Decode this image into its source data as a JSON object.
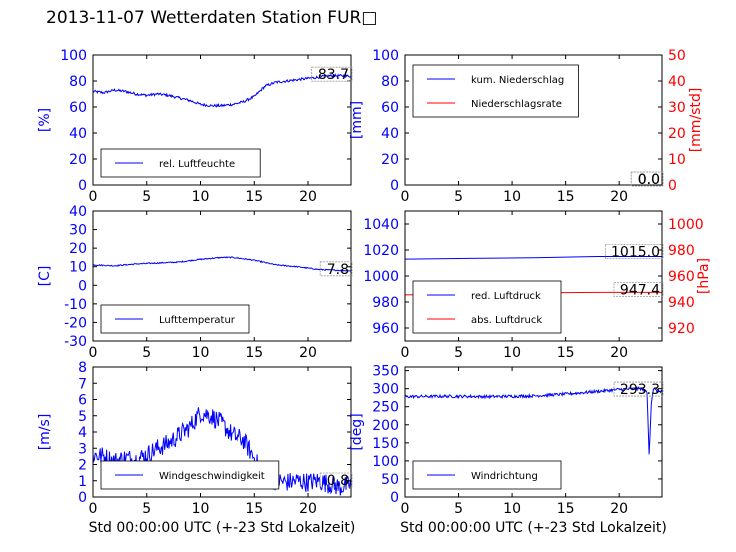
{
  "figure_title": "2013-11-07 Wetterdaten Station FUR□",
  "colors": {
    "left_axis": "#0000ff",
    "right_axis": "#ff0000",
    "text": "#000000"
  },
  "chart_data": [
    {
      "type": "line",
      "ylabel": "[%]",
      "ylim": [
        0,
        100
      ],
      "yticks": [
        0,
        20,
        40,
        60,
        80,
        100
      ],
      "xlim": [
        0,
        24
      ],
      "xticks": [
        0,
        5,
        10,
        15,
        20
      ],
      "last_value_label": "83.7",
      "legend_position": "bottom-left",
      "series": [
        {
          "name": "rel. Luftfeuchte",
          "color": "#0000ff",
          "noise": 1.0,
          "x": [
            0,
            1,
            2,
            3,
            4,
            5,
            6,
            7,
            8,
            9,
            10,
            11,
            12,
            13,
            14,
            15,
            16,
            17,
            18,
            19,
            20,
            21,
            22,
            23,
            24
          ],
          "values": [
            72,
            71,
            73,
            72,
            70,
            69,
            70,
            69,
            67,
            65,
            62,
            61,
            61,
            62,
            64,
            68,
            76,
            79,
            80,
            81,
            82,
            83,
            84,
            84,
            83.7
          ]
        }
      ]
    },
    {
      "type": "line",
      "ylabel": "[mm]",
      "ylim": [
        0,
        100
      ],
      "yticks": [
        0,
        20,
        40,
        60,
        80,
        100
      ],
      "ylabel2": "[mm/std]",
      "ylim2": [
        0,
        50
      ],
      "yticks2": [
        0,
        10,
        20,
        30,
        40,
        50
      ],
      "xlim": [
        0,
        24
      ],
      "xticks": [
        0,
        5,
        10,
        15,
        20
      ],
      "last_value_label": "0.0",
      "last_value_label2": "0.0",
      "legend_position": "top-left",
      "series": [
        {
          "name": "kum. Niederschlag",
          "color": "#0000ff",
          "axis": "left",
          "x": [
            0,
            24
          ],
          "values": [
            0,
            0
          ]
        },
        {
          "name": "Niederschlagsrate",
          "color": "#ff0000",
          "axis": "right",
          "x": [
            0,
            24
          ],
          "values": [
            0,
            0
          ]
        }
      ]
    },
    {
      "type": "line",
      "ylabel": "[C]",
      "ylim": [
        -30,
        40
      ],
      "yticks": [
        -30,
        -20,
        -10,
        0,
        10,
        20,
        30,
        40
      ],
      "xlim": [
        0,
        24
      ],
      "xticks": [
        0,
        5,
        10,
        15,
        20
      ],
      "last_value_label": "7.8",
      "legend_position": "bottom-left",
      "series": [
        {
          "name": "Lufttemperatur",
          "color": "#0000ff",
          "noise": 0.3,
          "x": [
            0,
            2,
            4,
            6,
            8,
            10,
            12,
            13,
            15,
            17,
            19,
            21,
            23,
            24
          ],
          "values": [
            11,
            10.5,
            11.5,
            12,
            12.5,
            14,
            15,
            15,
            13.5,
            11,
            10,
            8.5,
            8,
            7.8
          ]
        }
      ]
    },
    {
      "type": "line",
      "ylabel": "",
      "ylim": [
        950,
        1050
      ],
      "yticks": [
        960,
        980,
        1000,
        1020,
        1040
      ],
      "ylabel2": "[hPa]",
      "ylim2": [
        910,
        1010
      ],
      "yticks2": [
        920,
        940,
        960,
        980,
        1000
      ],
      "xlim": [
        0,
        24
      ],
      "xticks": [
        0,
        5,
        10,
        15,
        20
      ],
      "last_value_label": "1015.0",
      "last_value_label2": "947.4",
      "legend_position": "bottom-left",
      "series": [
        {
          "name": "red. Luftdruck",
          "color": "#0000ff",
          "axis": "left",
          "x": [
            0,
            6,
            12,
            18,
            24
          ],
          "values": [
            1013,
            1013.5,
            1014,
            1015,
            1015
          ]
        },
        {
          "name": "abs. Luftdruck",
          "color": "#ff0000",
          "axis": "right",
          "x": [
            0,
            6,
            12,
            18,
            24
          ],
          "values": [
            945.5,
            946,
            947,
            947.4,
            947.4
          ]
        }
      ]
    },
    {
      "type": "line",
      "ylabel": "[m/s]",
      "ylim": [
        0,
        8
      ],
      "yticks": [
        0,
        1,
        2,
        3,
        4,
        5,
        6,
        7,
        8
      ],
      "xlabel": "Std 00:00:00 UTC (+-23 Std Lokalzeit)",
      "xlim": [
        0,
        24
      ],
      "xticks": [
        0,
        5,
        10,
        15,
        20
      ],
      "last_value_label": "0.8",
      "legend_position": "bottom-left",
      "series": [
        {
          "name": "Windgeschwindigkeit",
          "color": "#0000ff",
          "noise": 0.6,
          "x": [
            0,
            1,
            2,
            3,
            4,
            5,
            6,
            7,
            8,
            9,
            10,
            11,
            12,
            13,
            14,
            15,
            16,
            17,
            18,
            19,
            20,
            21,
            22,
            23,
            24
          ],
          "values": [
            2.6,
            2.5,
            2.2,
            2.4,
            2.3,
            2.6,
            3.0,
            3.3,
            3.8,
            4.3,
            5.2,
            5.0,
            4.5,
            3.8,
            3.5,
            2.4,
            1.1,
            1.0,
            0.9,
            1.0,
            0.9,
            1.0,
            0.8,
            0.6,
            0.8
          ]
        }
      ]
    },
    {
      "type": "line",
      "ylabel": "[deg]",
      "ylim": [
        0,
        360
      ],
      "yticks": [
        0,
        50,
        100,
        150,
        200,
        250,
        300,
        350
      ],
      "xlabel": "Std 00:00:00 UTC (+-23 Std Lokalzeit)",
      "xlim": [
        0,
        24
      ],
      "xticks": [
        0,
        5,
        10,
        15,
        20
      ],
      "last_value_label": "293.3",
      "legend_position": "bottom-left",
      "series": [
        {
          "name": "Windrichtung",
          "color": "#0000ff",
          "noise": 4,
          "x": [
            0,
            4,
            8,
            12,
            15,
            17,
            19,
            20,
            21,
            22,
            22.6,
            22.8,
            23.0,
            23.2,
            23.5,
            24
          ],
          "values": [
            278,
            279,
            278,
            280,
            285,
            290,
            295,
            298,
            299,
            300,
            290,
            120,
            260,
            300,
            293,
            293.3
          ]
        }
      ]
    }
  ]
}
